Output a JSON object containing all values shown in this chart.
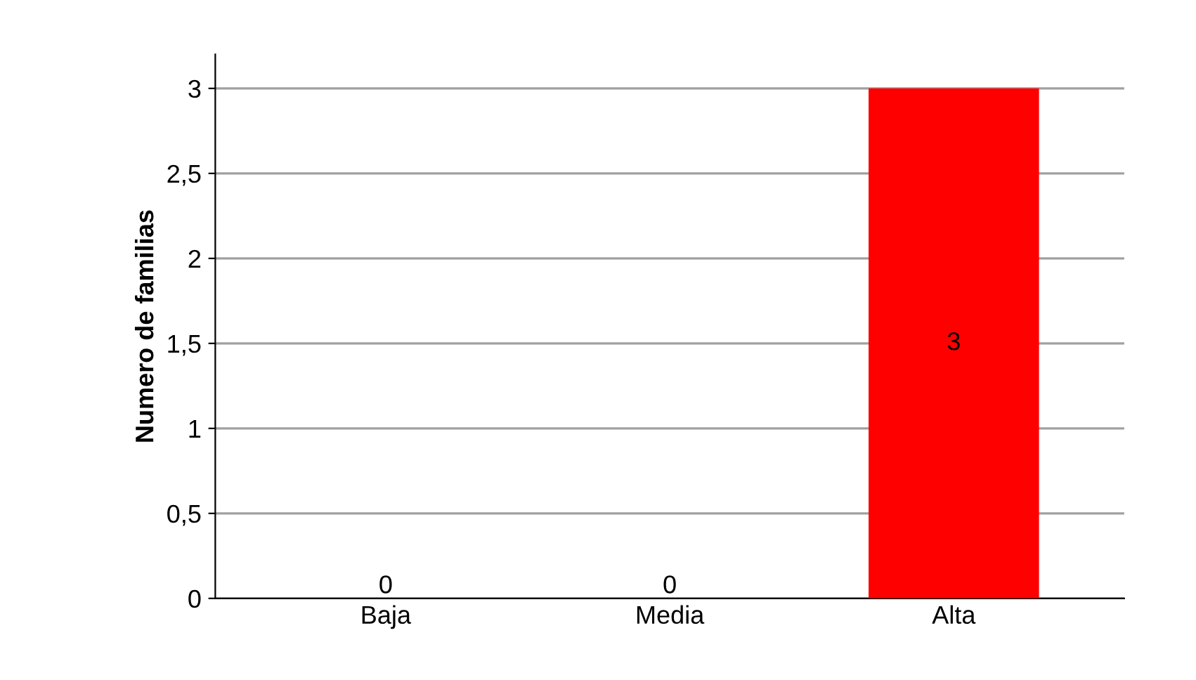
{
  "chart_data": {
    "type": "bar",
    "ylabel": "Numero de familias",
    "categories": [
      "Baja",
      "Media",
      "Alta"
    ],
    "values": [
      0,
      0,
      3
    ],
    "colors": [
      "#c8c400",
      "#c0763a",
      "#ff0000"
    ],
    "ylim": [
      0,
      3.2
    ],
    "yticks": [
      0,
      {
        "value": 0.5,
        "label": "0,5"
      },
      1,
      {
        "value": 1.5,
        "label": "1,5"
      },
      2,
      {
        "value": 2.5,
        "label": "2,5"
      },
      3
    ],
    "grid": "y",
    "data_labels": true
  }
}
